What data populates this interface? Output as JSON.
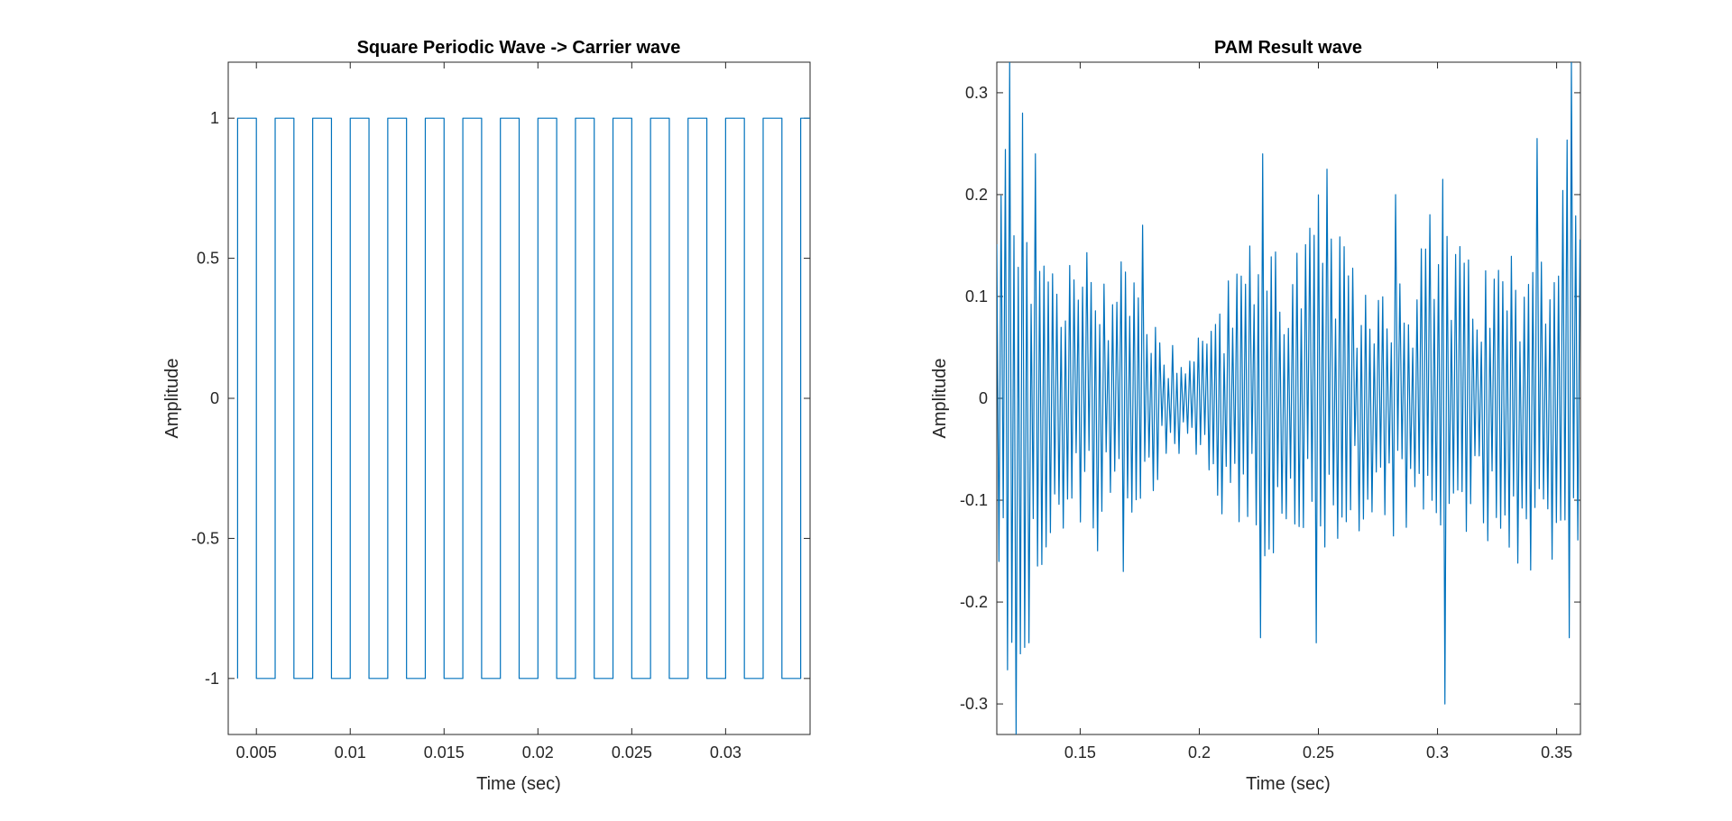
{
  "chart_data": [
    {
      "type": "line",
      "title": "Square Periodic Wave -> Carrier wave",
      "xlabel": "Time (sec)",
      "ylabel": "Amplitude",
      "xlim": [
        0.0035,
        0.0345
      ],
      "ylim": [
        -1.2,
        1.2
      ],
      "xticks": [
        0.005,
        0.01,
        0.015,
        0.02,
        0.025,
        0.03
      ],
      "xticklabels": [
        "0.005",
        "0.01",
        "0.015",
        "0.02",
        "0.025",
        "0.03"
      ],
      "yticks": [
        -1,
        -0.5,
        0,
        0.5,
        1
      ],
      "yticklabels": [
        "-1",
        "-0.5",
        "0",
        "0.5",
        "1"
      ],
      "grid": false,
      "color": "#0072BD",
      "waveform": {
        "kind": "square",
        "period": 0.002,
        "duty": 0.5,
        "high": 1,
        "low": -1,
        "pulse_starts": [
          0.004,
          0.006,
          0.008,
          0.01,
          0.012,
          0.014,
          0.016,
          0.018,
          0.02,
          0.022,
          0.024,
          0.026,
          0.028,
          0.03,
          0.032,
          0.034
        ]
      }
    },
    {
      "type": "line",
      "title": "PAM Result wave",
      "xlabel": "Time (sec)",
      "ylabel": "Amplitude",
      "xlim": [
        0.115,
        0.36
      ],
      "ylim": [
        -0.33,
        0.33
      ],
      "xticks": [
        0.15,
        0.2,
        0.25,
        0.3,
        0.35
      ],
      "xticklabels": [
        "0.15",
        "0.2",
        "0.25",
        "0.3",
        "0.35"
      ],
      "yticks": [
        -0.3,
        -0.2,
        -0.1,
        0,
        0.1,
        0.2,
        0.3
      ],
      "yticklabels": [
        "-0.3",
        "-0.2",
        "-0.1",
        "0",
        "0.1",
        "0.2",
        "0.3"
      ],
      "grid": false,
      "color": "#0072BD",
      "envelope": {
        "x": [
          0.115,
          0.12,
          0.125,
          0.13,
          0.14,
          0.15,
          0.16,
          0.17,
          0.18,
          0.19,
          0.2,
          0.21,
          0.22,
          0.23,
          0.24,
          0.25,
          0.26,
          0.27,
          0.28,
          0.29,
          0.3,
          0.31,
          0.32,
          0.33,
          0.34,
          0.35,
          0.355,
          0.36
        ],
        "amplitude": [
          0.2,
          0.33,
          0.3,
          0.2,
          0.15,
          0.15,
          0.15,
          0.16,
          0.1,
          0.05,
          0.07,
          0.12,
          0.15,
          0.18,
          0.16,
          0.2,
          0.15,
          0.12,
          0.14,
          0.15,
          0.2,
          0.15,
          0.14,
          0.15,
          0.18,
          0.16,
          0.3,
          0.16
        ]
      },
      "oscillation_period": 0.0018,
      "peaks": [
        {
          "x": 0.121,
          "y": 0.33
        },
        {
          "x": 0.123,
          "y": -0.33
        },
        {
          "x": 0.126,
          "y": 0.28
        },
        {
          "x": 0.128,
          "y": -0.24
        },
        {
          "x": 0.131,
          "y": 0.24
        },
        {
          "x": 0.168,
          "y": -0.17
        },
        {
          "x": 0.176,
          "y": 0.17
        },
        {
          "x": 0.226,
          "y": 0.24
        },
        {
          "x": 0.225,
          "y": -0.235
        },
        {
          "x": 0.249,
          "y": -0.24
        },
        {
          "x": 0.253,
          "y": 0.225
        },
        {
          "x": 0.283,
          "y": 0.2
        },
        {
          "x": 0.303,
          "y": -0.3
        },
        {
          "x": 0.302,
          "y": 0.215
        },
        {
          "x": 0.341,
          "y": 0.255
        },
        {
          "x": 0.357,
          "y": 0.33
        },
        {
          "x": 0.356,
          "y": -0.235
        }
      ]
    }
  ]
}
